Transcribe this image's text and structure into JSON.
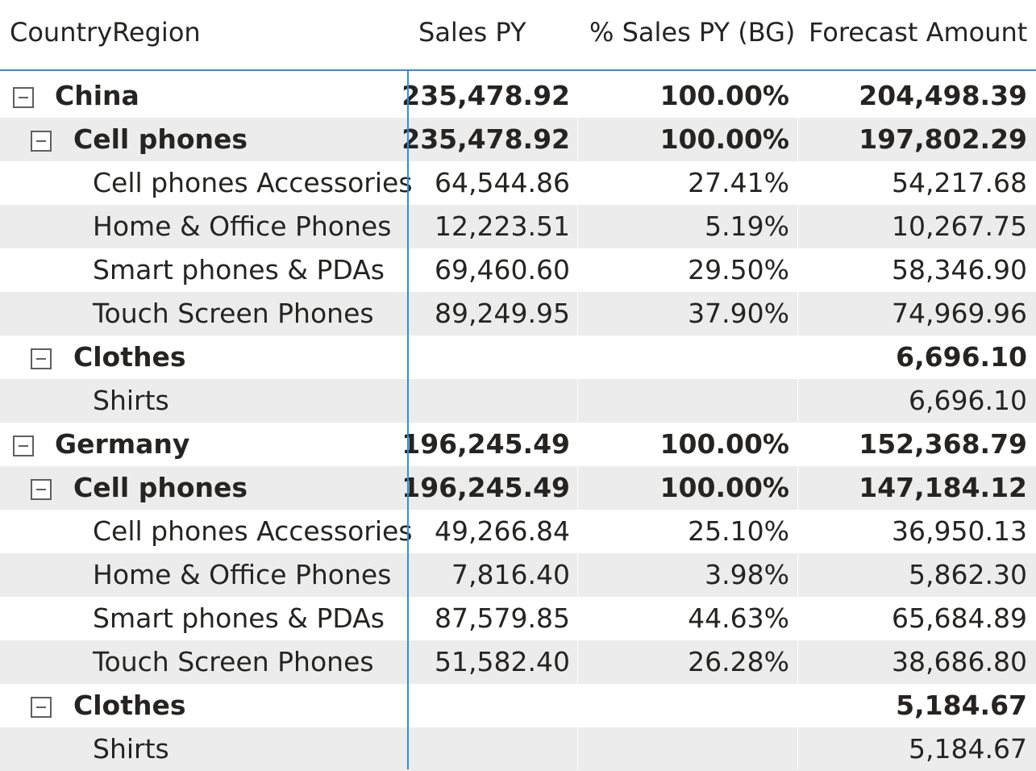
{
  "headers": {
    "region": "CountryRegion",
    "sales_py": "Sales PY",
    "pct_sales_py": "% Sales PY (BG)",
    "forecast": "Forecast Amount"
  },
  "rows": [
    {
      "level": 0,
      "label": "China",
      "sales_py": "235,478.92",
      "pct": "100.00%",
      "forecast": "204,498.39",
      "bold": true,
      "toggle": true,
      "toggle_icon": "collapse-icon"
    },
    {
      "level": 1,
      "label": "Cell phones",
      "sales_py": "235,478.92",
      "pct": "100.00%",
      "forecast": "197,802.29",
      "bold": true,
      "toggle": true,
      "toggle_icon": "collapse-icon"
    },
    {
      "level": 2,
      "label": "Cell phones Accessories",
      "sales_py": "64,544.86",
      "pct": "27.41%",
      "forecast": "54,217.68"
    },
    {
      "level": 2,
      "label": "Home & Office Phones",
      "sales_py": "12,223.51",
      "pct": "5.19%",
      "forecast": "10,267.75"
    },
    {
      "level": 2,
      "label": "Smart phones & PDAs",
      "sales_py": "69,460.60",
      "pct": "29.50%",
      "forecast": "58,346.90"
    },
    {
      "level": 2,
      "label": "Touch Screen Phones",
      "sales_py": "89,249.95",
      "pct": "37.90%",
      "forecast": "74,969.96"
    },
    {
      "level": 1,
      "label": "Clothes",
      "sales_py": "",
      "pct": "",
      "forecast": "6,696.10",
      "bold": true,
      "toggle": true,
      "toggle_icon": "collapse-icon"
    },
    {
      "level": 2,
      "label": "Shirts",
      "sales_py": "",
      "pct": "",
      "forecast": "6,696.10"
    },
    {
      "level": 0,
      "label": "Germany",
      "sales_py": "196,245.49",
      "pct": "100.00%",
      "forecast": "152,368.79",
      "bold": true,
      "toggle": true,
      "toggle_icon": "collapse-icon"
    },
    {
      "level": 1,
      "label": "Cell phones",
      "sales_py": "196,245.49",
      "pct": "100.00%",
      "forecast": "147,184.12",
      "bold": true,
      "toggle": true,
      "toggle_icon": "collapse-icon"
    },
    {
      "level": 2,
      "label": "Cell phones Accessories",
      "sales_py": "49,266.84",
      "pct": "25.10%",
      "forecast": "36,950.13"
    },
    {
      "level": 2,
      "label": "Home & Office Phones",
      "sales_py": "7,816.40",
      "pct": "3.98%",
      "forecast": "5,862.30"
    },
    {
      "level": 2,
      "label": "Smart phones & PDAs",
      "sales_py": "87,579.85",
      "pct": "44.63%",
      "forecast": "65,684.89"
    },
    {
      "level": 2,
      "label": "Touch Screen Phones",
      "sales_py": "51,582.40",
      "pct": "26.28%",
      "forecast": "38,686.80"
    },
    {
      "level": 1,
      "label": "Clothes",
      "sales_py": "",
      "pct": "",
      "forecast": "5,184.67",
      "bold": true,
      "toggle": true,
      "toggle_icon": "collapse-icon"
    },
    {
      "level": 2,
      "label": "Shirts",
      "sales_py": "",
      "pct": "",
      "forecast": "5,184.67"
    }
  ],
  "colors": {
    "accent": "#2f8fde",
    "row_shade": "#ececec",
    "text": "#252423"
  }
}
